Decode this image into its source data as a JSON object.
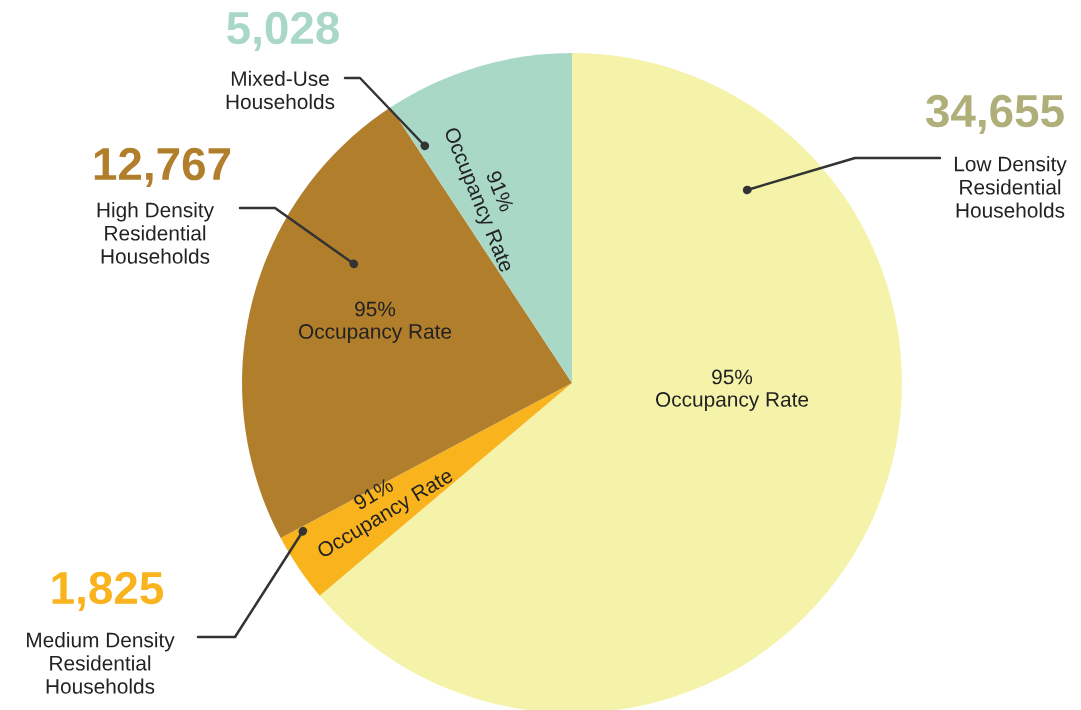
{
  "chart_data": {
    "type": "pie",
    "categories": [
      "Low Density\nResidential\nHouseholds",
      "Medium Density\nResidential\nHouseholds",
      "High Density\nResidential\nHouseholds",
      "Mixed-Use\nHouseholds"
    ],
    "values": [
      34655,
      1825,
      12767,
      5028
    ],
    "value_labels": [
      "34,655",
      "1,825",
      "12,767",
      "5,028"
    ],
    "colors": [
      "#f4f3a9",
      "#f9b31d",
      "#b17e2c",
      "#a9d8c7"
    ],
    "annotations": [
      "95%\nOccupancy Rate",
      "91%\nOccupancy Rate",
      "95%\nOccupancy Rate",
      "91%\nOccupancy Rate"
    ]
  }
}
